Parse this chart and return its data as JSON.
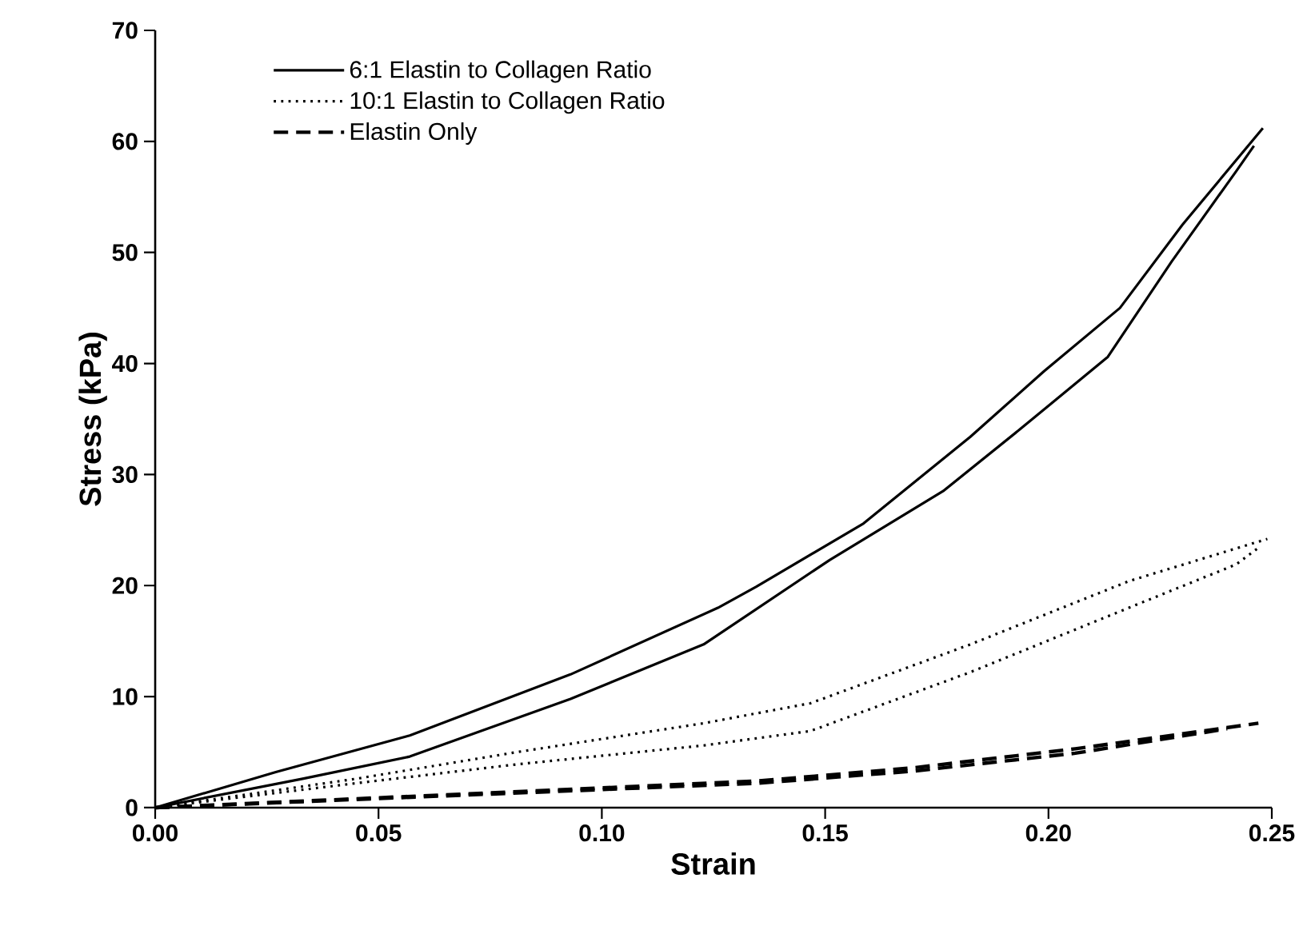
{
  "chart_data": {
    "type": "line",
    "xlabel": "Strain",
    "ylabel": "Stress (kPa)",
    "xlim": [
      0,
      0.25
    ],
    "ylim": [
      0,
      70
    ],
    "xticks": [
      {
        "value": 0,
        "label": "0.00"
      },
      {
        "value": 0.05,
        "label": "0.05"
      },
      {
        "value": 0.1,
        "label": "0.10"
      },
      {
        "value": 0.15,
        "label": "0.15"
      },
      {
        "value": 0.2,
        "label": "0.20"
      },
      {
        "value": 0.25,
        "label": "0.25"
      }
    ],
    "yticks": [
      0,
      10,
      20,
      30,
      40,
      50,
      60,
      70
    ],
    "grid": false,
    "legend": "top left",
    "marker": "none",
    "series": [
      {
        "name": "6:1 Elastin to Collagen Ratio",
        "color": "#000000",
        "line_style": "solid",
        "x": [
          0,
          0.027,
          0.057,
          0.093,
          0.126,
          0.1346,
          0.1586,
          0.1825,
          0.199,
          0.216,
          0.23,
          0.248
        ],
        "values": [
          0,
          3.2,
          6.5,
          12.0,
          18.0,
          19.9,
          25.6,
          33.4,
          39.3,
          45.0,
          52.5,
          61.2
        ]
      },
      {
        "color": "#000000",
        "line_style": "solid",
        "x": [
          0,
          0.033,
          0.057,
          0.093,
          0.1228,
          0.151,
          0.1764,
          0.194,
          0.2133,
          0.2276,
          0.242,
          0.246
        ],
        "values": [
          0,
          2.6,
          4.6,
          9.8,
          14.7,
          22.3,
          28.5,
          34.2,
          40.6,
          49.2,
          57.3,
          59.6
        ]
      },
      {
        "name": "10:1 Elastin to Collagen Ratio",
        "color": "#000000",
        "line_style": "dotted",
        "x": [
          0,
          0.045,
          0.081,
          0.1228,
          0.1467,
          0.1825,
          0.218,
          0.249
        ],
        "values": [
          0,
          2.6,
          5.0,
          7.6,
          9.4,
          14.7,
          20.4,
          24.2
        ]
      },
      {
        "color": "#000000",
        "line_style": "dotted",
        "x": [
          0,
          0.045,
          0.081,
          0.1228,
          0.1467,
          0.1825,
          0.218,
          0.242,
          0.247
        ],
        "values": [
          0,
          2.2,
          3.9,
          5.6,
          6.9,
          12.2,
          18.0,
          21.9,
          23.4
        ]
      },
      {
        "name": "Elastin Only",
        "color": "#000000",
        "line_style": "dashed",
        "x": [
          0,
          0.135,
          0.17,
          0.206,
          0.247
        ],
        "values": [
          0,
          2.4,
          3.6,
          5.3,
          7.6
        ]
      },
      {
        "color": "#000000",
        "line_style": "dashed",
        "x": [
          0,
          0.135,
          0.17,
          0.206,
          0.24
        ],
        "values": [
          0,
          2.2,
          3.3,
          4.9,
          7.1
        ]
      }
    ]
  }
}
